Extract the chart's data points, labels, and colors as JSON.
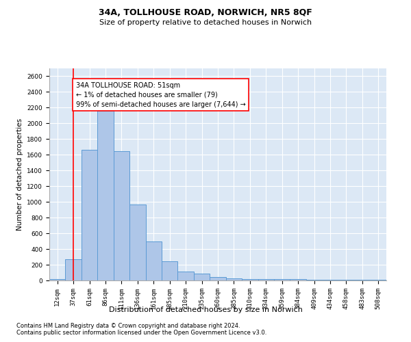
{
  "title": "34A, TOLLHOUSE ROAD, NORWICH, NR5 8QF",
  "subtitle": "Size of property relative to detached houses in Norwich",
  "xlabel": "Distribution of detached houses by size in Norwich",
  "ylabel": "Number of detached properties",
  "categories": [
    "12sqm",
    "37sqm",
    "61sqm",
    "86sqm",
    "111sqm",
    "136sqm",
    "161sqm",
    "185sqm",
    "210sqm",
    "235sqm",
    "260sqm",
    "285sqm",
    "310sqm",
    "334sqm",
    "359sqm",
    "384sqm",
    "409sqm",
    "434sqm",
    "458sqm",
    "483sqm",
    "508sqm"
  ],
  "values": [
    20,
    270,
    1660,
    2160,
    1650,
    970,
    500,
    245,
    115,
    90,
    40,
    30,
    20,
    20,
    15,
    15,
    10,
    10,
    5,
    5,
    5
  ],
  "bar_color": "#aec6e8",
  "bar_edge_color": "#5b9bd5",
  "vline_x": 1.0,
  "annotation_text": "34A TOLLHOUSE ROAD: 51sqm\n← 1% of detached houses are smaller (79)\n99% of semi-detached houses are larger (7,644) →",
  "annotation_box_color": "white",
  "annotation_box_edge_color": "red",
  "vline_color": "red",
  "ylim": [
    0,
    2700
  ],
  "yticks": [
    0,
    200,
    400,
    600,
    800,
    1000,
    1200,
    1400,
    1600,
    1800,
    2000,
    2200,
    2400,
    2600
  ],
  "footer1": "Contains HM Land Registry data © Crown copyright and database right 2024.",
  "footer2": "Contains public sector information licensed under the Open Government Licence v3.0.",
  "title_fontsize": 9,
  "subtitle_fontsize": 8,
  "xlabel_fontsize": 8,
  "ylabel_fontsize": 7.5,
  "tick_fontsize": 6.5,
  "annot_fontsize": 7,
  "footer_fontsize": 6,
  "grid_color": "#c8d8ea",
  "bg_color": "#dce8f5"
}
